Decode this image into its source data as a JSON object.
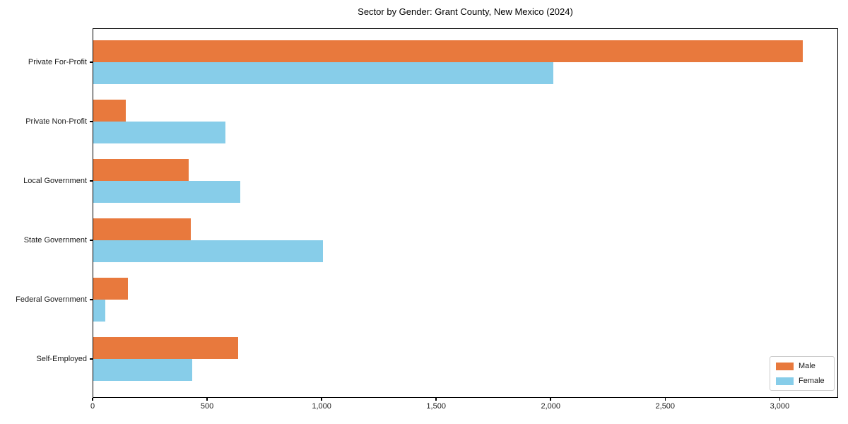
{
  "title": "Sector by Gender: Grant County, New Mexico (2024)",
  "colors": {
    "male": "#E8793D",
    "female": "#87CDE9",
    "axis": "#000000",
    "tick_text": "#1a1a1a",
    "legend_border": "#cccccc",
    "background": "#ffffff"
  },
  "legend": {
    "position": "lower right",
    "items": [
      {
        "label": "Male",
        "color": "#E8793D"
      },
      {
        "label": "Female",
        "color": "#87CDE9"
      }
    ]
  },
  "chart_data": {
    "type": "bar",
    "orientation": "horizontal",
    "title": "Sector by Gender: Grant County, New Mexico (2024)",
    "categories": [
      "Private For-Profit",
      "Private Non-Profit",
      "Local Government",
      "State Government",
      "Federal Government",
      "Self-Employed"
    ],
    "series": [
      {
        "name": "Male",
        "color": "#E8793D",
        "values": [
          3100,
          145,
          420,
          430,
          155,
          635
        ]
      },
      {
        "name": "Female",
        "color": "#87CDE9",
        "values": [
          2010,
          580,
          645,
          1005,
          55,
          435
        ]
      }
    ],
    "xlabel": "",
    "ylabel": "",
    "xlim": [
      0,
      3255
    ],
    "x_ticks": [
      0,
      500,
      1000,
      1500,
      2000,
      2500,
      3000
    ],
    "x_tick_labels": [
      "0",
      "500",
      "1,000",
      "1,500",
      "2,000",
      "2,500",
      "3,000"
    ],
    "grid": false,
    "legend_position": "lower right"
  }
}
